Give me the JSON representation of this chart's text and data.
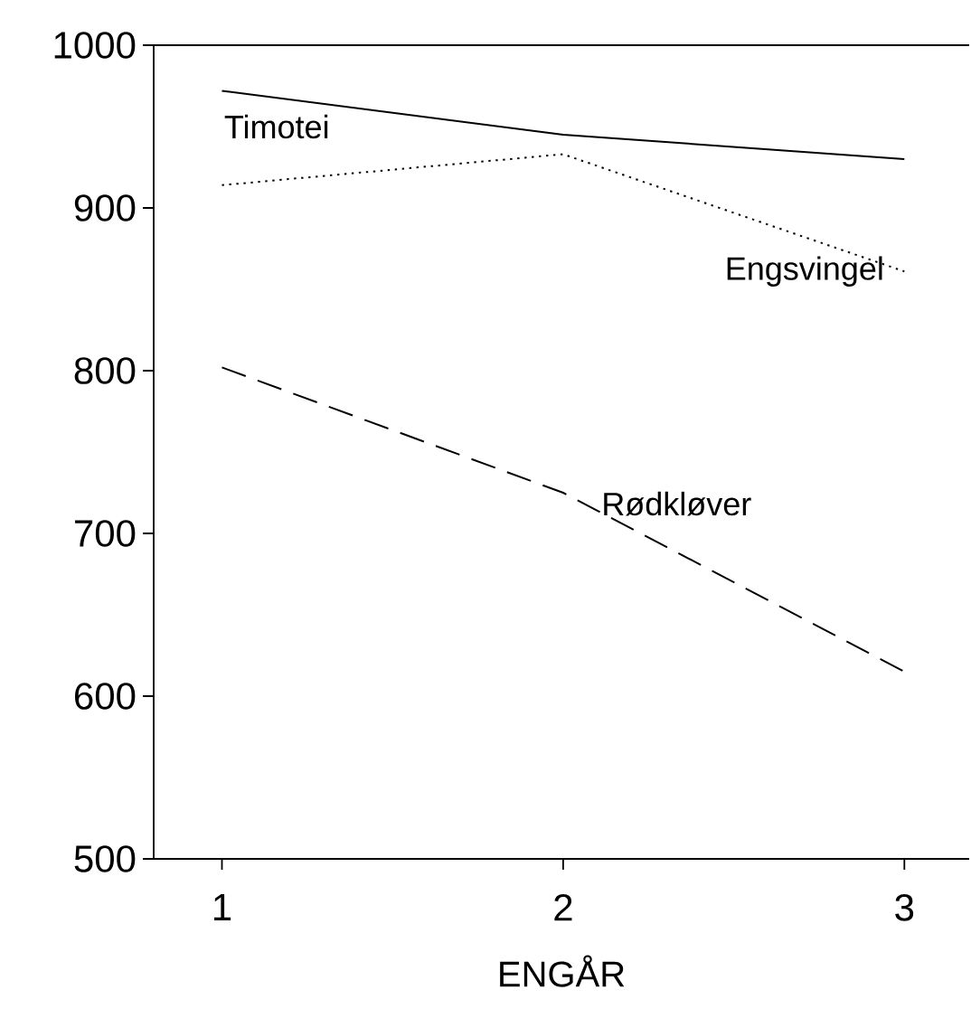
{
  "chart_data": {
    "type": "line",
    "xlabel": "ENGÅR",
    "x": [
      1,
      2,
      3
    ],
    "xlim": [
      0.8,
      3.19
    ],
    "xticks": [
      1,
      2,
      3
    ],
    "ylim": [
      500,
      1000
    ],
    "yticks": [
      500,
      600,
      700,
      800,
      900,
      1000
    ],
    "grid": false,
    "legend": false,
    "marker": "none",
    "series": [
      {
        "name": "Timotei",
        "color": "#000000",
        "line_style": "solid",
        "values": [
          972,
          945,
          930
        ]
      },
      {
        "name": "Engsvingel",
        "color": "#000000",
        "line_style": "dotted",
        "values": [
          914,
          933,
          861
        ]
      },
      {
        "name": "Rødkløver",
        "color": "#000000",
        "line_style": "dashed",
        "values": [
          802,
          725,
          615
        ]
      }
    ]
  }
}
